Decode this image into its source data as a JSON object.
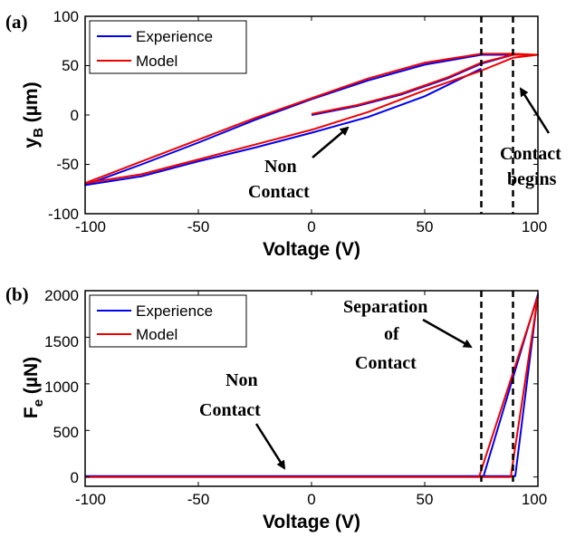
{
  "chart_data": [
    {
      "type": "line",
      "panel_label": "(a)",
      "xlabel": "Voltage (V)",
      "ylabel_main": "y",
      "ylabel_sub": "B",
      "ylabel_unit": " (µm)",
      "xlim": [
        -100,
        100
      ],
      "ylim": [
        -100,
        100
      ],
      "xticks": [
        "-100",
        "-50",
        "0",
        "50",
        "100"
      ],
      "yticks": [
        "-100",
        "-50",
        "0",
        "50",
        "100"
      ],
      "legend_position": "top-left",
      "vlines": [
        75,
        89
      ],
      "series": [
        {
          "name": "Experience",
          "color": "#0000ee",
          "x": [
            0,
            20,
            40,
            60,
            75,
            89,
            100,
            89,
            75,
            50,
            25,
            0,
            -25,
            -50,
            -75,
            -100,
            -75,
            -50,
            -25,
            0,
            25,
            50,
            75
          ],
          "y": [
            0,
            9,
            21,
            37,
            52,
            61,
            61,
            61,
            61,
            51,
            35,
            16,
            -5,
            -28,
            -50,
            -71,
            -62,
            -47,
            -33,
            -18,
            -2,
            19,
            47
          ]
        },
        {
          "name": "Model",
          "color": "#ee0000",
          "x": [
            0,
            20,
            40,
            60,
            75,
            89,
            100,
            89,
            75,
            50,
            25,
            0,
            -25,
            -50,
            -75,
            -100,
            -75,
            -50,
            -25,
            0,
            25,
            50,
            75,
            89,
            100
          ],
          "y": [
            1,
            10,
            22,
            38,
            53,
            61,
            61,
            62,
            62,
            53,
            37,
            17,
            -3,
            -25,
            -47,
            -69,
            -60,
            -45,
            -30,
            -15,
            3,
            25,
            45,
            58,
            61
          ]
        }
      ],
      "annotations": [
        {
          "text": [
            "Non",
            "Contact"
          ]
        },
        {
          "text": [
            "Contact",
            "begins"
          ]
        }
      ]
    },
    {
      "type": "line",
      "panel_label": "(b)",
      "xlabel": "Voltage (V)",
      "ylabel_main": "F",
      "ylabel_sub": "e",
      "ylabel_unit": " (µN)",
      "xlim": [
        -100,
        100
      ],
      "ylim": [
        -100,
        2000
      ],
      "xticks": [
        "-100",
        "-50",
        "0",
        "50",
        "100"
      ],
      "yticks": [
        "0",
        "500",
        "1000",
        "1500",
        "2000"
      ],
      "legend_position": "top-left",
      "vlines": [
        75,
        89
      ],
      "series": [
        {
          "name": "Experience",
          "color": "#0000ee",
          "x": [
            -100,
            76,
            100,
            90,
            77,
            -100
          ],
          "y": [
            10,
            10,
            1960,
            10,
            10,
            10
          ]
        },
        {
          "name": "Model",
          "color": "#ee0000",
          "x": [
            -100,
            74,
            100,
            88,
            74,
            -100
          ],
          "y": [
            0,
            0,
            1940,
            0,
            0,
            0
          ]
        }
      ],
      "annotations": [
        {
          "text": [
            "Non",
            "Contact"
          ]
        },
        {
          "text": [
            "Separation",
            "of",
            "Contact"
          ]
        }
      ]
    }
  ]
}
